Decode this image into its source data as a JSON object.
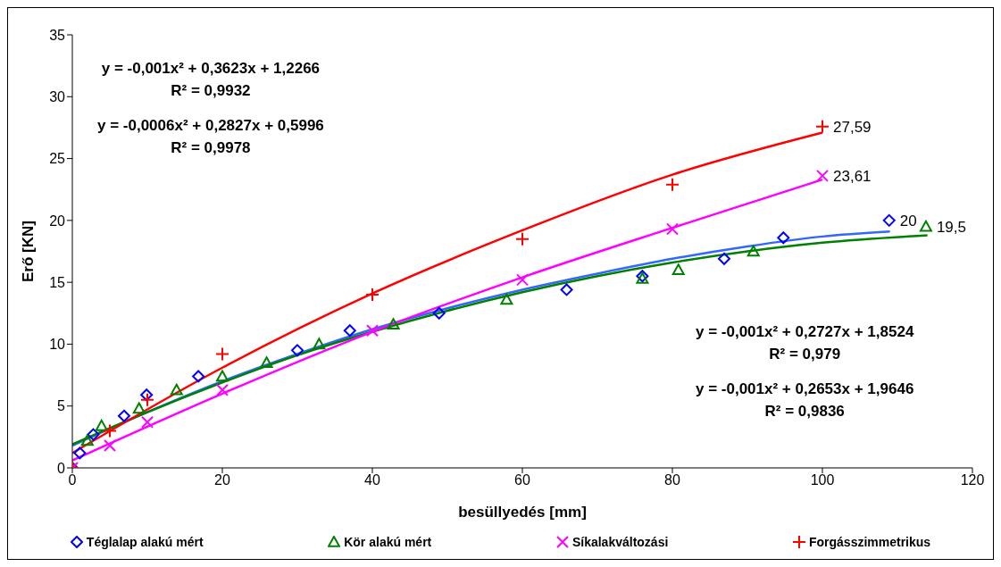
{
  "chart_data": {
    "type": "scatter",
    "xlabel": "besüllyedés [mm]",
    "ylabel": "Erő [KN]",
    "xlim": [
      0,
      120
    ],
    "xticks": [
      0,
      20,
      40,
      60,
      80,
      100,
      120
    ],
    "ylim": [
      0,
      35
    ],
    "yticks": [
      0,
      5,
      10,
      15,
      20,
      25,
      30,
      35
    ],
    "legend": "bottom",
    "annotations": [
      "y = -0,001x² + 0,3623x + 1,2266",
      "R² = 0,9932",
      "y = -0,0006x² + 0,2827x + 0,5996",
      "R² = 0,9978",
      "y = -0,001x² + 0,2727x + 1,8524",
      "R² = 0,979",
      "y = -0,001x² + 0,2653x + 1,9646",
      "R² = 0,9836"
    ],
    "series": [
      {
        "name": "Téglalap alakú mért",
        "marker": "diamond",
        "color": "#0000ff",
        "x": [
          0,
          1,
          2.8,
          6.9,
          9.9,
          16.8,
          30,
          37,
          48.9,
          65.9,
          76,
          86.9,
          94.8,
          108.9
        ],
        "values": [
          0,
          1.2,
          2.7,
          4.2,
          5.9,
          7.4,
          9.5,
          11.1,
          12.5,
          14.4,
          15.5,
          16.9,
          18.6,
          20
        ],
        "value_labels": [
          null,
          null,
          null,
          null,
          null,
          null,
          null,
          null,
          null,
          null,
          null,
          null,
          null,
          "20"
        ]
      },
      {
        "name": "Kör alakú mért",
        "marker": "triangle",
        "color": "#008000",
        "x": [
          0,
          2,
          3.9,
          8.9,
          13.9,
          20,
          25.9,
          32.9,
          42.8,
          57.9,
          76,
          80.8,
          90.8,
          113.8
        ],
        "values": [
          0,
          2.2,
          3.4,
          4.8,
          6.3,
          7.4,
          8.5,
          10,
          11.6,
          13.6,
          15.3,
          16,
          17.5,
          19.5
        ],
        "value_labels": [
          null,
          null,
          null,
          null,
          null,
          null,
          null,
          null,
          null,
          null,
          null,
          null,
          null,
          "19,5"
        ]
      },
      {
        "name": "Síkalakváltozási",
        "marker": "x",
        "color": "#ff00ff",
        "x": [
          0,
          5,
          10,
          20,
          40,
          60,
          80,
          100
        ],
        "values": [
          0,
          1.8,
          3.7,
          6.3,
          11.1,
          15.2,
          19.3,
          23.61
        ],
        "value_labels": [
          null,
          null,
          null,
          null,
          null,
          null,
          null,
          "23,61"
        ]
      },
      {
        "name": "Forgásszimmetrikus",
        "marker": "cross",
        "color": "#ff0000",
        "x": [
          0,
          5,
          10,
          20,
          40,
          60,
          80,
          100
        ],
        "values": [
          0,
          3,
          5.5,
          9.2,
          14,
          18.5,
          22.9,
          27.59
        ],
        "value_labels": [
          null,
          null,
          null,
          null,
          null,
          null,
          null,
          "27,59"
        ]
      },
      {
        "type": "line",
        "color": "#3366ff",
        "x": [
          0,
          10,
          20,
          30,
          40,
          50,
          60,
          70,
          80,
          90,
          100,
          109
        ],
        "values": [
          1.8,
          4.5,
          7,
          9.2,
          11.2,
          12.9,
          14.4,
          15.7,
          16.9,
          17.9,
          18.7,
          19.1
        ]
      },
      {
        "type": "line",
        "color": "#008000",
        "x": [
          0,
          10,
          20,
          30,
          40,
          50,
          60,
          70,
          80,
          90,
          100,
          114
        ],
        "values": [
          1.9,
          4.5,
          6.9,
          9.1,
          11,
          12.7,
          14.2,
          15.5,
          16.6,
          17.5,
          18.2,
          18.8
        ]
      },
      {
        "type": "line",
        "color": "#ff00ff",
        "x": [
          0,
          20,
          40,
          60,
          80,
          100
        ],
        "values": [
          0.6,
          6,
          11,
          15.4,
          19.4,
          23.3
        ]
      },
      {
        "type": "line",
        "color": "#ff0000",
        "x": [
          0,
          20,
          40,
          60,
          80,
          100
        ],
        "values": [
          1.2,
          8.1,
          14.1,
          19.2,
          23.7,
          27.1
        ]
      }
    ]
  }
}
